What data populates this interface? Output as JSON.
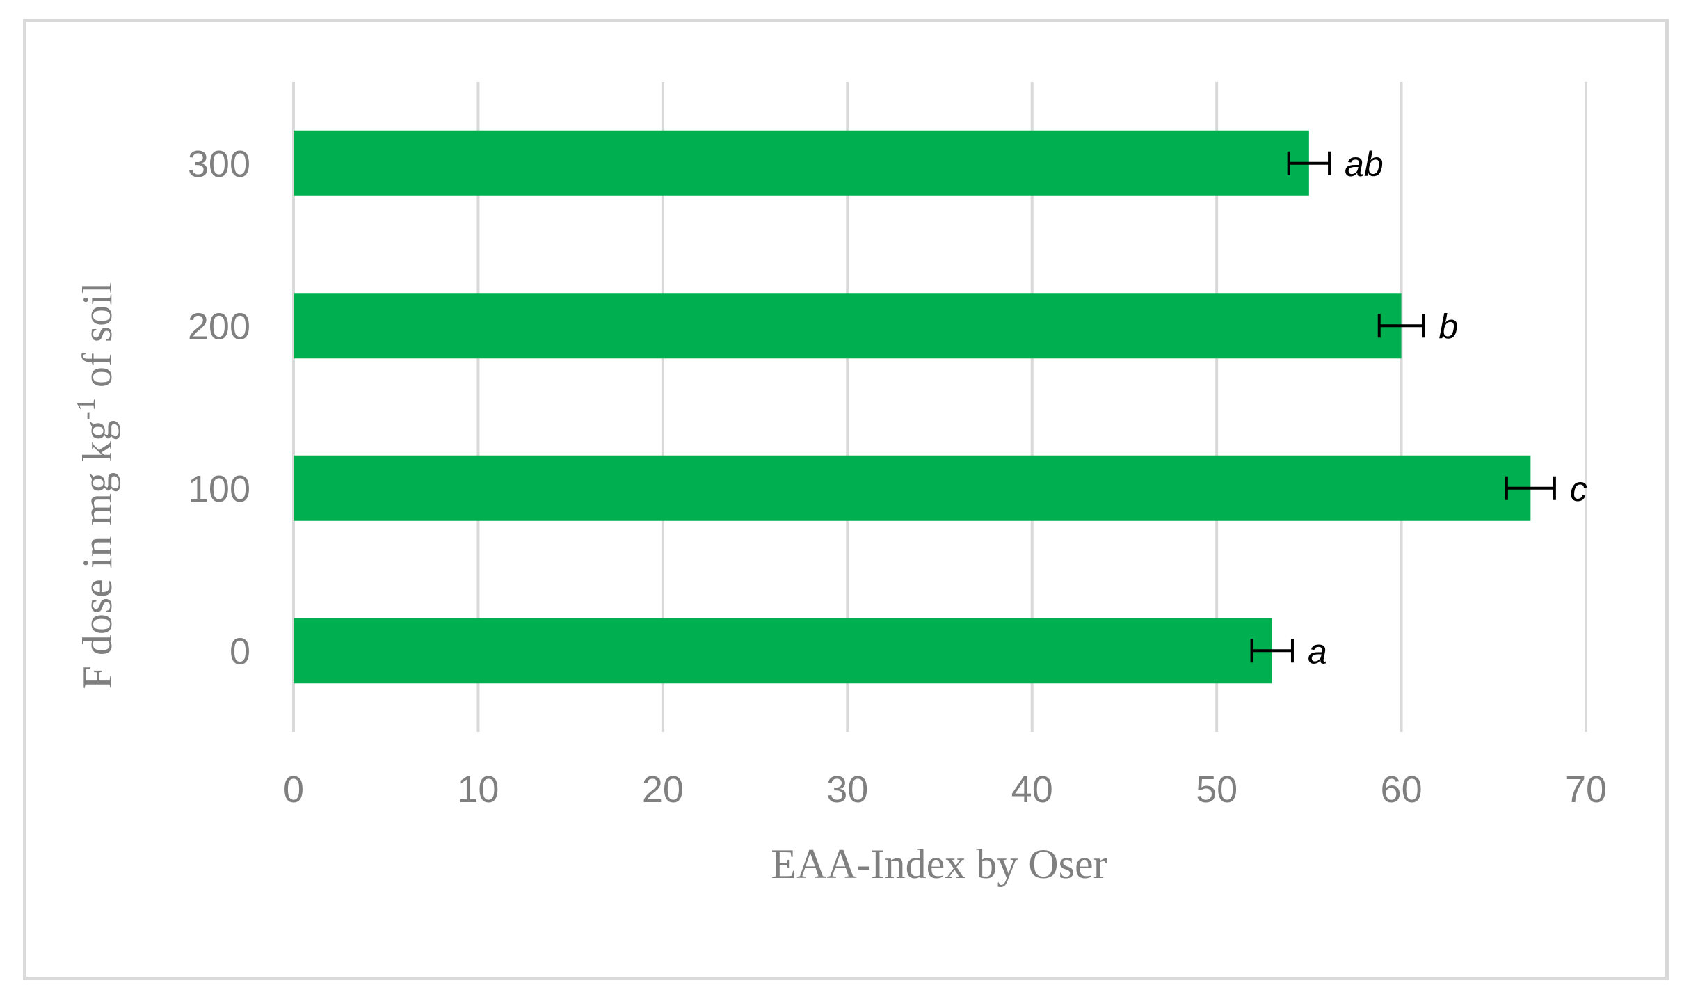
{
  "chart_data": {
    "type": "bar",
    "orientation": "horizontal",
    "categories": [
      "0",
      "100",
      "200",
      "300"
    ],
    "series": [
      {
        "values": [
          53,
          67,
          60,
          55
        ],
        "errors": [
          1.1,
          1.3,
          1.2,
          1.1
        ],
        "annotations": [
          "a",
          "c",
          "b",
          "ab"
        ],
        "color": "#00b050"
      }
    ],
    "xlabel": "EAA-Index by Oser",
    "ylabel_parts": {
      "before": "F dose in mg kg",
      "superscript": "-1",
      "after": " of soil"
    },
    "xlim": [
      0,
      70
    ],
    "xticks": [
      0,
      10,
      20,
      30,
      40,
      50,
      60,
      70
    ],
    "grid": "vertical",
    "legend": "none"
  }
}
